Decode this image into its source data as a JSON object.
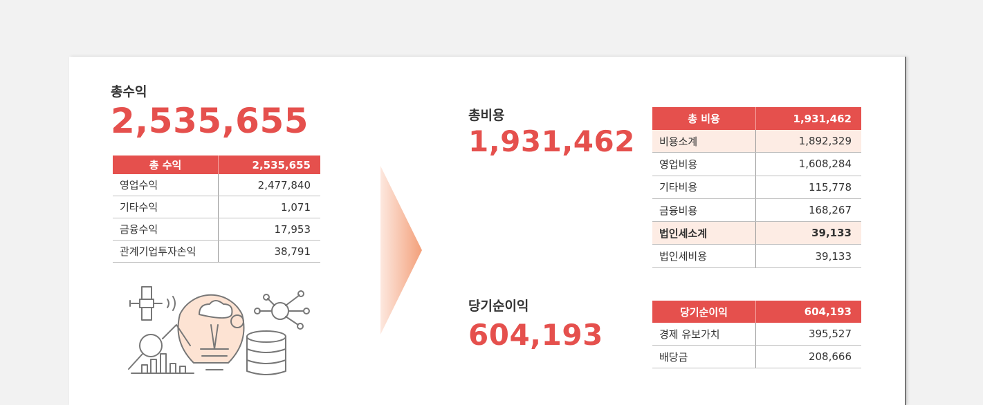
{
  "revenue": {
    "title": "총수익",
    "amount": "2,535,655",
    "table": {
      "header": [
        "총 수익",
        "2,535,655"
      ],
      "rows": [
        [
          "영업수익",
          "2,477,840"
        ],
        [
          "기타수익",
          "1,071"
        ],
        [
          "금융수익",
          "17,953"
        ],
        [
          "관계기업투자손익",
          "38,791"
        ]
      ]
    }
  },
  "cost": {
    "title": "총비용",
    "amount": "1,931,462",
    "table": {
      "header": [
        "총 비용",
        "1,931,462"
      ],
      "rows": [
        [
          "비용소계",
          "1,892,329"
        ],
        [
          "영업비용",
          "1,608,284"
        ],
        [
          "기타비용",
          "115,778"
        ],
        [
          "금융비용",
          "168,267"
        ],
        [
          "법인세소계",
          "39,133"
        ],
        [
          "법인세비용",
          "39,133"
        ]
      ]
    }
  },
  "net_income": {
    "title": "당기순이익",
    "amount": "604,193",
    "table": {
      "header": [
        "당기순이익",
        "604,193"
      ],
      "rows": [
        [
          "경제 유보가치",
          "395,527"
        ],
        [
          "배당금",
          "208,666"
        ]
      ]
    }
  }
}
